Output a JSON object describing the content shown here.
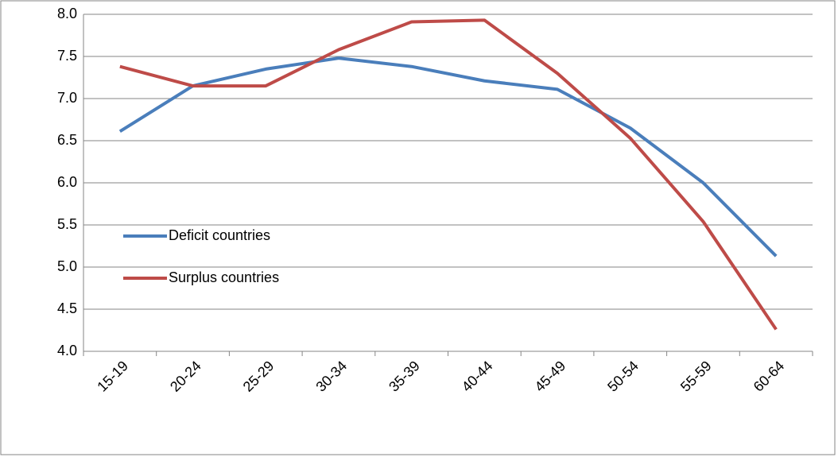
{
  "chart_data": {
    "type": "line",
    "categories": [
      "15-19",
      "20-24",
      "25-29",
      "30-34",
      "35-39",
      "40-44",
      "45-49",
      "50-54",
      "55-59",
      "60-64"
    ],
    "series": [
      {
        "name": "Deficit countries",
        "color": "#4a7ebb",
        "values": [
          6.61,
          7.15,
          7.35,
          7.48,
          7.38,
          7.21,
          7.11,
          6.65,
          6.0,
          5.13
        ]
      },
      {
        "name": "Surplus countries",
        "color": "#be4b48",
        "values": [
          7.38,
          7.15,
          7.15,
          7.58,
          7.91,
          7.93,
          7.3,
          6.53,
          5.54,
          4.26
        ]
      }
    ],
    "ylim": [
      4.0,
      8.0
    ],
    "yticks": [
      {
        "value": 4,
        "label": "4.0"
      },
      4.5,
      {
        "value": 5,
        "label": "5.0"
      },
      5.5,
      {
        "value": 6,
        "label": "6.0"
      },
      6.5,
      {
        "value": 7,
        "label": "7.0"
      },
      7.5,
      {
        "value": 8,
        "label": "8.0"
      }
    ],
    "grid": true,
    "legend": "left"
  }
}
